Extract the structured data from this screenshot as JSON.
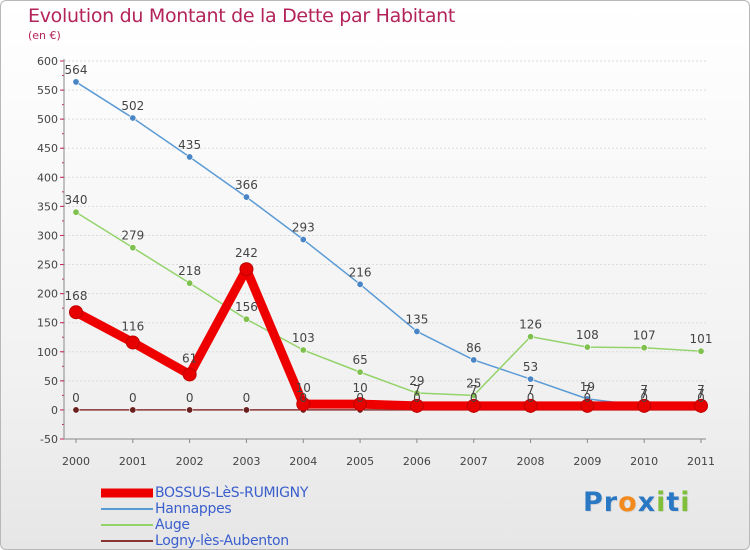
{
  "title": "Evolution du Montant de la Dette par Habitant",
  "subtitle": "(en €)",
  "logo": {
    "text": "Proxiti",
    "letters": [
      "P",
      "r",
      "o",
      "x",
      "i",
      "t",
      "i"
    ],
    "colors": [
      "#2a78c4",
      "#2a78c4",
      "#f28a1e",
      "#2a78c4",
      "#7fbf3a",
      "#2a78c4",
      "#7fbf3a"
    ]
  },
  "chart_data": {
    "type": "line",
    "title": "Evolution du Montant de la Dette par Habitant",
    "ylabel": "(en €)",
    "xlabel": "",
    "categories": [
      "2000",
      "2001",
      "2002",
      "2003",
      "2004",
      "2005",
      "2006",
      "2007",
      "2008",
      "2009",
      "2010",
      "2011"
    ],
    "yticks": [
      "600",
      "550",
      "500",
      "450",
      "400",
      "350",
      "300",
      "250",
      "200",
      "150",
      "100",
      "50",
      "0",
      "-50"
    ],
    "ylim": [
      -50,
      600
    ],
    "series": [
      {
        "name": "Hannappes",
        "color": "#5b9bd5",
        "dot": "#4a86c5",
        "values": [
          564,
          502,
          435,
          366,
          293,
          216,
          135,
          86,
          53,
          19,
          7,
          7
        ],
        "labels": [
          "564",
          "502",
          "435",
          "366",
          "293",
          "216",
          "135",
          "86",
          "53",
          "19",
          "7",
          "7"
        ]
      },
      {
        "name": "Auge",
        "color": "#93d36a",
        "dot": "#7fc04f",
        "values": [
          340,
          279,
          218,
          156,
          103,
          65,
          29,
          25,
          126,
          108,
          107,
          101
        ],
        "labels": [
          "340",
          "279",
          "218",
          "156",
          "103",
          "65",
          "29",
          "25",
          "126",
          "108",
          "107",
          "101"
        ]
      },
      {
        "name": "Logny-lès-Aubenton",
        "color": "#8a3535",
        "dot": "#6b2020",
        "values": [
          0,
          0,
          0,
          0,
          0,
          0,
          0,
          0,
          0,
          0,
          0,
          0
        ],
        "labels": [
          "0",
          "0",
          "0",
          "0",
          "0",
          "0",
          "0",
          "0",
          "0",
          "0",
          "0",
          "0"
        ]
      },
      {
        "name": "BOSSUS-LèS-RUMIGNY",
        "color": "#ee0000",
        "dot": "#e60000",
        "values": [
          168,
          116,
          61,
          242,
          10,
          10,
          7,
          7,
          7,
          7,
          7,
          7
        ],
        "labels": [
          "168",
          "116",
          "61",
          "242",
          "10",
          "10",
          "7",
          "7",
          "7",
          "7",
          "7",
          "7"
        ]
      }
    ],
    "legend": [
      "BOSSUS-LèS-RUMIGNY",
      "Hannappes",
      "Auge",
      "Logny-lès-Aubenton"
    ]
  },
  "legend_items": [
    {
      "label": "BOSSUS-LèS-RUMIGNY",
      "color": "#ee0000",
      "thickness": 9
    },
    {
      "label": "Hannappes",
      "color": "#5b9bd5",
      "thickness": 2
    },
    {
      "label": "Auge",
      "color": "#93d36a",
      "thickness": 2
    },
    {
      "label": "Logny-lès-Aubenton",
      "color": "#8a3535",
      "thickness": 2
    }
  ]
}
